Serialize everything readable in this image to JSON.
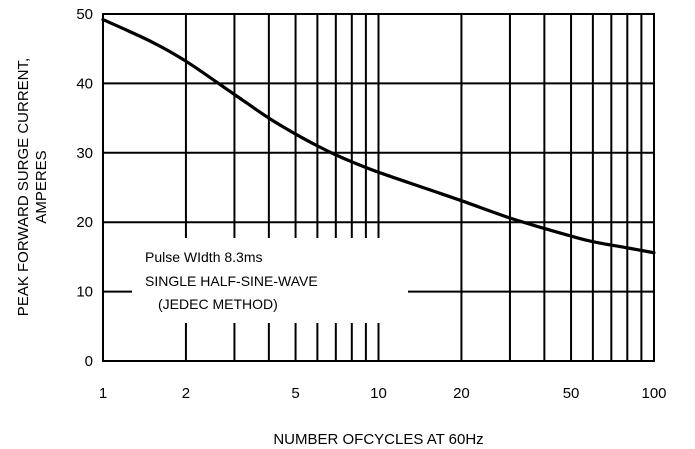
{
  "chart_data": {
    "type": "line",
    "x_scale": "log",
    "xlim": [
      1,
      100
    ],
    "ylim": [
      0,
      50
    ],
    "xlabel": "NUMBER OFCYCLES AT 60Hz",
    "ylabel_lines": [
      "PEAK FORWARD SURGE CURRENT,",
      "AMPERES"
    ],
    "x_ticks": [
      1,
      2,
      5,
      10,
      20,
      50,
      100
    ],
    "x_tick_labels": [
      "1",
      "2",
      "5",
      "10",
      "20",
      "50",
      "100"
    ],
    "x_gridlines": [
      2,
      3,
      4,
      5,
      6,
      7,
      8,
      9,
      10,
      20,
      30,
      40,
      50,
      60,
      70,
      80,
      90
    ],
    "y_ticks": [
      0,
      10,
      20,
      30,
      40,
      50
    ],
    "y_tick_labels": [
      "0",
      "10",
      "20",
      "30",
      "40",
      "50"
    ],
    "grid": true,
    "annotation": {
      "lines": [
        "Pulse WIdth 8.3ms",
        "SINGLE HALF-SINE-WAVE",
        "(JEDEC METHOD)"
      ]
    },
    "series": [
      {
        "color": "#000000",
        "x": [
          1,
          1.5,
          2,
          3,
          4,
          5,
          6,
          7,
          8,
          10,
          15,
          20,
          30,
          40,
          50,
          60,
          80,
          100
        ],
        "y": [
          49.2,
          46,
          43.2,
          38.4,
          35,
          32.7,
          31,
          29.7,
          28.7,
          27.2,
          24.8,
          23.1,
          20.6,
          19.1,
          18.0,
          17.2,
          16.3,
          15.6
        ]
      }
    ]
  }
}
